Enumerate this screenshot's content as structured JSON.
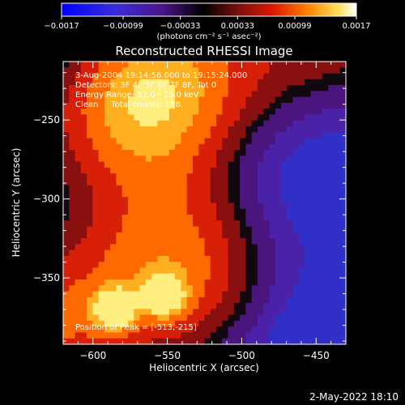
{
  "chart_data": {
    "type": "heatmap",
    "title": "Reconstructed RHESSI Image",
    "xlabel": "Heliocentric X (arcsec)",
    "ylabel": "Heliocentric Y (arcsec)",
    "xlim": [
      -620,
      -430
    ],
    "ylim": [
      -392,
      -213
    ],
    "x_ticks": [
      {
        "value": -600,
        "label": "−600"
      },
      {
        "value": -550,
        "label": "−550"
      },
      {
        "value": -500,
        "label": "−500"
      },
      {
        "value": -450,
        "label": "−450"
      }
    ],
    "y_ticks": [
      {
        "value": -250,
        "label": "−250"
      },
      {
        "value": -300,
        "label": "−300"
      },
      {
        "value": -350,
        "label": "−350"
      }
    ],
    "colorbar": {
      "range": [
        -0.0017,
        0.0017
      ],
      "units": "(photons cm⁻² s⁻¹ asec⁻²)",
      "ticks": [
        {
          "value": -0.0017,
          "label": "−0.0017"
        },
        {
          "value": -0.00099,
          "label": "−0.00099"
        },
        {
          "value": -0.00033,
          "label": "−0.00033"
        },
        {
          "value": 0.00033,
          "label": "0.00033"
        },
        {
          "value": 0.00099,
          "label": "0.00099"
        },
        {
          "value": 0.0017,
          "label": "0.0017"
        }
      ]
    },
    "annotations": [
      "3-Aug-2004 19:14:56.000 to 19:15:24.000",
      "Detectors: 3F 4F 5F 6F 7F 8F, Tot 0",
      "Energy Range: 12.0 - 25.0 keV",
      "Clean     Total counts: 158."
    ],
    "peak_label": "Position of Peak = [-513,-215]",
    "grid": false
  },
  "footer": {
    "timestamp": "2-May-2022 18:10"
  },
  "colors": {
    "background": "#000000",
    "text": "#ffffff",
    "contour": "#000000"
  }
}
